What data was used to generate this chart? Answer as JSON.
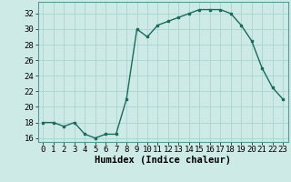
{
  "x": [
    0,
    1,
    2,
    3,
    4,
    5,
    6,
    7,
    8,
    9,
    10,
    11,
    12,
    13,
    14,
    15,
    16,
    17,
    18,
    19,
    20,
    21,
    22,
    23
  ],
  "y": [
    18,
    18,
    17.5,
    18,
    16.5,
    16,
    16.5,
    16.5,
    21,
    30,
    29,
    30.5,
    31,
    31.5,
    32,
    32.5,
    32.5,
    32.5,
    32,
    30.5,
    28.5,
    25,
    22.5,
    21
  ],
  "line_color": "#1a6b5a",
  "marker": "s",
  "marker_size": 2,
  "bg_color": "#ceeae7",
  "grid_color": "#aad4d0",
  "xlabel": "Humidex (Indice chaleur)",
  "ylim": [
    15.5,
    33.5
  ],
  "xlim": [
    -0.5,
    23.5
  ],
  "yticks": [
    16,
    18,
    20,
    22,
    24,
    26,
    28,
    30,
    32
  ],
  "xticks": [
    0,
    1,
    2,
    3,
    4,
    5,
    6,
    7,
    8,
    9,
    10,
    11,
    12,
    13,
    14,
    15,
    16,
    17,
    18,
    19,
    20,
    21,
    22,
    23
  ],
  "xlabel_fontsize": 7.5,
  "tick_fontsize": 6.5
}
